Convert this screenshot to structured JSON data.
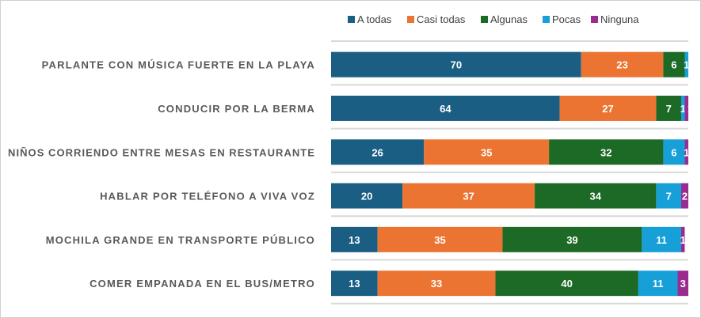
{
  "chart_data": {
    "type": "bar",
    "orientation": "horizontal",
    "stacked": true,
    "title": "",
    "xlabel": "",
    "ylabel": "",
    "xlim": [
      0,
      100
    ],
    "grid": false,
    "legend_position": "top",
    "categories": [
      "PARLANTE CON MÚSICA FUERTE EN LA PLAYA",
      "CONDUCIR POR LA BERMA",
      "NIÑOS CORRIENDO ENTRE MESAS EN RESTAURANTE",
      "HABLAR POR TELÉFONO A VIVA VOZ",
      "MOCHILA GRANDE EN TRANSPORTE PÚBLICO",
      "COMER EMPANADA EN EL BUS/METRO"
    ],
    "series": [
      {
        "name": "A todas",
        "color": "#1B5E84",
        "values": [
          70,
          64,
          26,
          20,
          13,
          13
        ]
      },
      {
        "name": "Casi todas",
        "color": "#EC7433",
        "values": [
          23,
          27,
          35,
          37,
          35,
          33
        ]
      },
      {
        "name": "Algunas",
        "color": "#1D6A26",
        "values": [
          6,
          7,
          32,
          34,
          39,
          40
        ]
      },
      {
        "name": "Pocas",
        "color": "#17A0D8",
        "values": [
          1,
          1,
          6,
          7,
          11,
          11
        ]
      },
      {
        "name": "Ninguna",
        "color": "#9A2C8F",
        "values": [
          0,
          1,
          1,
          2,
          1,
          3
        ]
      }
    ]
  }
}
